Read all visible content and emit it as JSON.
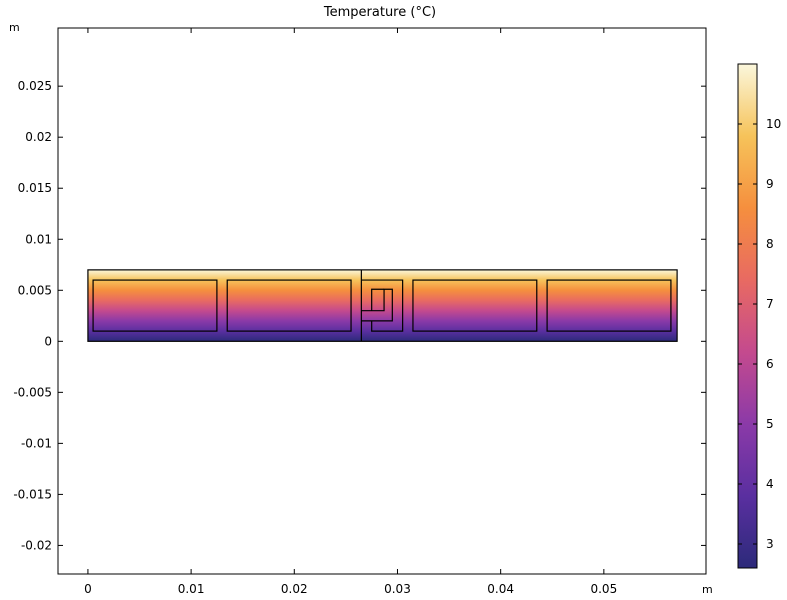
{
  "chart_data": {
    "type": "heatmap",
    "title": "Temperature (°C)",
    "x_unit": "m",
    "y_unit": "m",
    "xlim": [
      -0.0029,
      0.0599
    ],
    "ylim": [
      -0.0228,
      0.0307
    ],
    "x_ticks": [
      {
        "value": 0,
        "label": "0"
      },
      {
        "value": 0.01,
        "label": "0.01"
      },
      {
        "value": 0.02,
        "label": "0.02"
      },
      {
        "value": 0.03,
        "label": "0.03"
      },
      {
        "value": 0.04,
        "label": "0.04"
      },
      {
        "value": 0.05,
        "label": "0.05"
      }
    ],
    "y_ticks": [
      {
        "value": 0.025,
        "label": "0.025"
      },
      {
        "value": 0.02,
        "label": "0.02"
      },
      {
        "value": 0.015,
        "label": "0.015"
      },
      {
        "value": 0.01,
        "label": "0.01"
      },
      {
        "value": 0.005,
        "label": "0.005"
      },
      {
        "value": 0,
        "label": "0"
      },
      {
        "value": -0.005,
        "label": "-0.005"
      },
      {
        "value": -0.01,
        "label": "-0.01"
      },
      {
        "value": -0.015,
        "label": "-0.015"
      },
      {
        "value": -0.02,
        "label": "-0.02"
      }
    ],
    "colorbar": {
      "range": [
        2.6,
        11.0
      ],
      "ticks": [
        {
          "value": 3,
          "label": "3"
        },
        {
          "value": 4,
          "label": "4"
        },
        {
          "value": 5,
          "label": "5"
        },
        {
          "value": 6,
          "label": "6"
        },
        {
          "value": 7,
          "label": "7"
        },
        {
          "value": 8,
          "label": "8"
        },
        {
          "value": 9,
          "label": "9"
        },
        {
          "value": 10,
          "label": "10"
        }
      ],
      "colors": [
        "#2c2a7a",
        "#5a2fa0",
        "#8b3aa8",
        "#c44a8e",
        "#e86a62",
        "#f58f3e",
        "#f6c35a",
        "#fbf7dc"
      ]
    },
    "domain": {
      "x": [
        0,
        0.0571
      ],
      "y": [
        0,
        0.007
      ]
    },
    "temperature_gradient": {
      "y_bottom": 0,
      "T_bottom": 2.6,
      "y_top": 0.007,
      "T_top": 11.0
    },
    "inner_cells": [
      {
        "x": [
          0.0005,
          0.0125
        ],
        "y": [
          0.001,
          0.006
        ]
      },
      {
        "x": [
          0.0135,
          0.0255
        ],
        "y": [
          0.001,
          0.006
        ]
      },
      {
        "x": [
          0.0315,
          0.0435
        ],
        "y": [
          0.001,
          0.006
        ]
      },
      {
        "x": [
          0.0445,
          0.0565
        ],
        "y": [
          0.001,
          0.006
        ]
      }
    ],
    "divider_x": 0.0265,
    "joint_path": [
      [
        0.0265,
        0.003
      ],
      [
        0.0287,
        0.003
      ],
      [
        0.0287,
        0.0051
      ],
      [
        0.0295,
        0.0051
      ],
      [
        0.0295,
        0.002
      ],
      [
        0.0265,
        0.002
      ]
    ],
    "joint_outer": [
      [
        0.0265,
        0.006
      ],
      [
        0.0305,
        0.006
      ],
      [
        0.0305,
        0.001
      ],
      [
        0.0275,
        0.001
      ],
      [
        0.0275,
        0.002
      ]
    ],
    "joint_inner": [
      [
        0.0275,
        0.003
      ],
      [
        0.0275,
        0.0051
      ],
      [
        0.0287,
        0.0051
      ]
    ]
  }
}
